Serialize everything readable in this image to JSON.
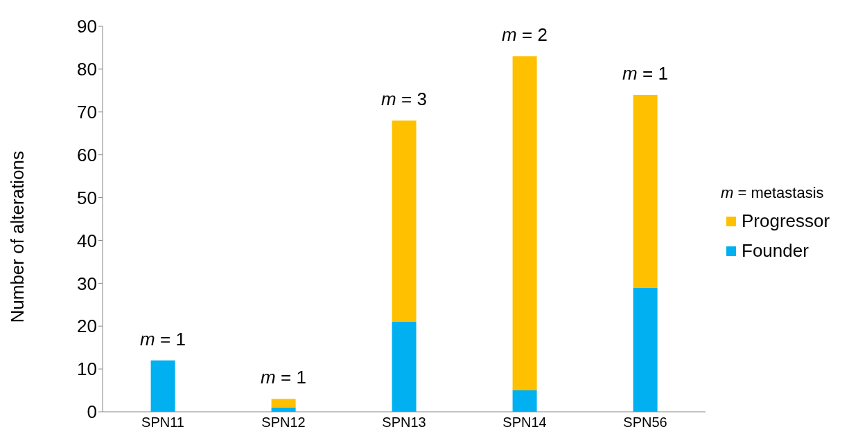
{
  "chart_data": {
    "type": "bar",
    "stacked": true,
    "ylabel": "Number of alterations",
    "legend_title": "m = metastasis",
    "legend": "right",
    "categories": [
      "SPN11",
      "SPN12",
      "SPN13",
      "SPN14",
      "SPN56"
    ],
    "series": [
      {
        "name": "Founder",
        "color": "#00b0f0",
        "values": [
          12,
          1,
          21,
          5,
          29
        ]
      },
      {
        "name": "Progressor",
        "color": "#ffc000",
        "values": [
          0,
          2,
          47,
          78,
          45
        ]
      }
    ],
    "ylim": [
      0,
      90
    ],
    "yticks": [
      0,
      10,
      20,
      30,
      40,
      50,
      60,
      70,
      80,
      90
    ],
    "grid": false,
    "annotations": [
      {
        "text": "m = 1",
        "x": "SPN11",
        "y": 12
      },
      {
        "text": "m = 1",
        "x": "SPN12",
        "y": 3
      },
      {
        "text": "m = 3",
        "x": "SPN13",
        "y": 68
      },
      {
        "text": "m = 2",
        "x": "SPN14",
        "y": 83
      },
      {
        "text": "m = 1",
        "x": "SPN56",
        "y": 74
      }
    ]
  }
}
